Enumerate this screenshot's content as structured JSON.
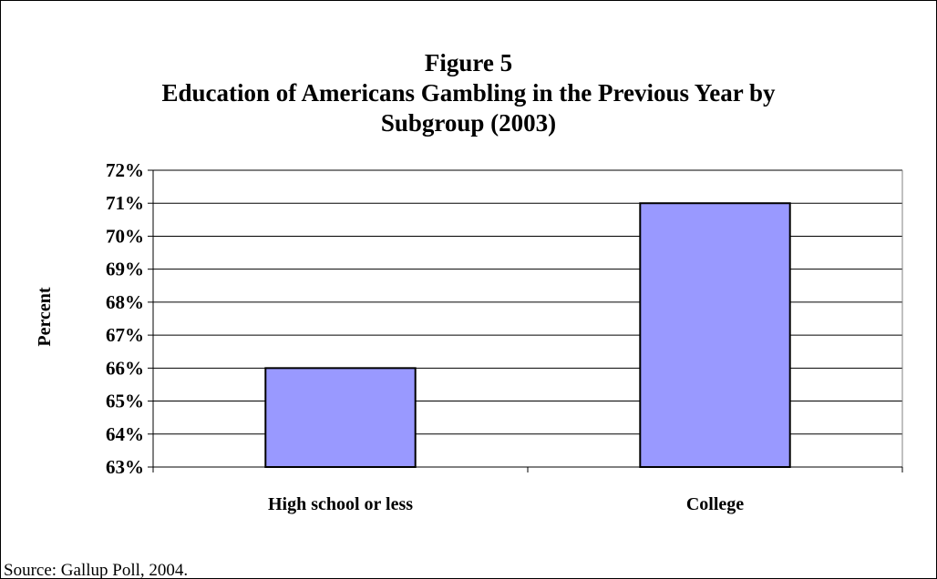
{
  "chart_data": {
    "type": "bar",
    "title_lines": [
      "Figure 5",
      "Education of Americans Gambling in the Previous Year by",
      "Subgroup (2003)"
    ],
    "ylabel": "Percent",
    "xlabel": "",
    "categories": [
      "High school or less",
      "College"
    ],
    "values": [
      66,
      71
    ],
    "ylim": [
      63,
      72
    ],
    "yticks": [
      "63%",
      "64%",
      "65%",
      "66%",
      "67%",
      "68%",
      "69%",
      "70%",
      "71%",
      "72%"
    ],
    "grid": true,
    "bar_color": "#9999ff",
    "source": "Source:  Gallup Poll, 2004."
  }
}
